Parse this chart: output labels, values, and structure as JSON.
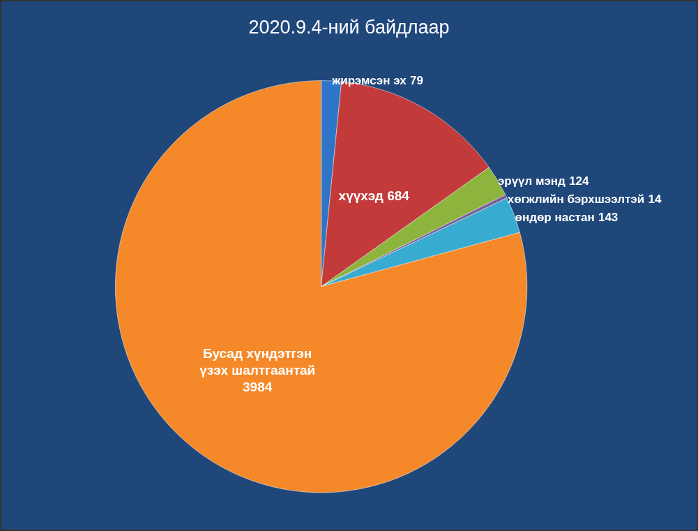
{
  "chart_data": {
    "type": "pie",
    "title": "2020.9.4-ний байдлаар",
    "categories": [
      "жирэмсэн эх",
      "хүүхэд",
      "эрүүл мэнд",
      "хөгжлийн бэрхшээлтэй",
      "өндөр настан",
      "Бусад хүндэтгэн үзэх шалтгаантай"
    ],
    "values": [
      79,
      684,
      124,
      14,
      143,
      3984
    ],
    "colors": [
      "#2f74c6",
      "#c23b3a",
      "#8db43c",
      "#7a5c9e",
      "#38acd0",
      "#f5892a"
    ],
    "data_labels": true,
    "legend": false
  }
}
